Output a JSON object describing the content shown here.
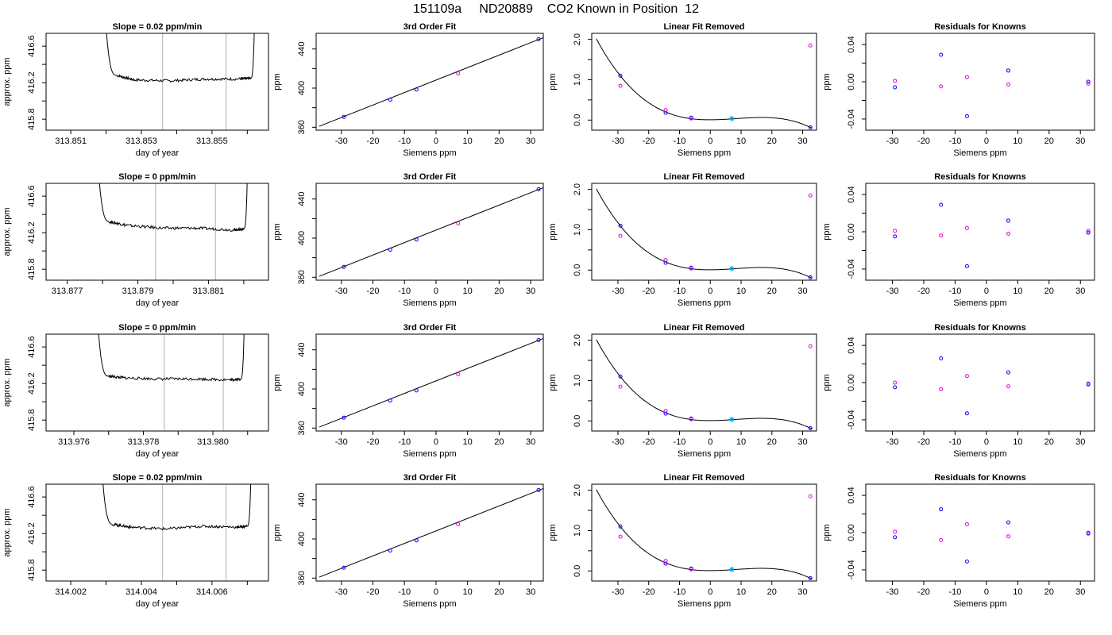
{
  "title": "151109a     ND20889    CO2 Known in Position  12",
  "colors": {
    "frame": "#000000",
    "trace": "#000000",
    "marker_line": "#bfbfbf",
    "point_blue": "#0000ff",
    "point_magenta": "#e000e0",
    "point_cyan": "#00b0ff"
  },
  "rows": [
    {
      "timeseries": {
        "title": "Slope =  0.02  ppm/min",
        "xlabel": "day of year",
        "ylabel": "approx. ppm",
        "x_ticks": [
          "313.851",
          "313.853",
          "313.855"
        ],
        "x_tick_values": [
          313.851,
          313.853,
          313.855
        ],
        "xlim": [
          313.8503,
          313.8566
        ],
        "y_ticks": [
          "415.8",
          "416.2",
          "416.6"
        ],
        "y_tick_values": [
          415.8,
          416.2,
          416.6
        ],
        "ylim": [
          415.68,
          416.74
        ],
        "markers": [
          313.8536,
          313.8554
        ]
      },
      "cubic": {
        "title": "3rd Order Fit",
        "xlabel": "Siemens ppm",
        "ylabel": "ppm"
      },
      "linear": {
        "title": "Linear Fit Removed",
        "xlabel": "Siemens ppm",
        "ylabel": "ppm"
      },
      "resid": {
        "title": "Residuals for Knowns",
        "xlabel": "Siemens ppm",
        "ylabel": "ppm"
      }
    },
    {
      "timeseries": {
        "title": "Slope =  0  ppm/min",
        "xlabel": "day of year",
        "ylabel": "approx. ppm",
        "x_ticks": [
          "313.877",
          "313.879",
          "313.881"
        ],
        "x_tick_values": [
          313.877,
          313.879,
          313.881
        ],
        "xlim": [
          313.8764,
          313.8827
        ],
        "y_ticks": [
          "415.8",
          "416.2",
          "416.6"
        ],
        "y_tick_values": [
          415.8,
          416.2,
          416.6
        ],
        "ylim": [
          415.68,
          416.74
        ],
        "markers": [
          313.8795,
          313.8812
        ]
      },
      "cubic": {
        "title": "3rd Order Fit",
        "xlabel": "Siemens ppm",
        "ylabel": "ppm"
      },
      "linear": {
        "title": "Linear Fit Removed",
        "xlabel": "Siemens ppm",
        "ylabel": "ppm"
      },
      "resid": {
        "title": "Residuals for Knowns",
        "xlabel": "Siemens ppm",
        "ylabel": "ppm"
      }
    },
    {
      "timeseries": {
        "title": "Slope =  0  ppm/min",
        "xlabel": "day of year",
        "ylabel": "approx. ppm",
        "x_ticks": [
          "313.976",
          "313.978",
          "313.980"
        ],
        "x_tick_values": [
          313.976,
          313.978,
          313.98
        ],
        "xlim": [
          313.9752,
          313.9816
        ],
        "y_ticks": [
          "415.8",
          "416.2",
          "416.6"
        ],
        "y_tick_values": [
          415.8,
          416.2,
          416.6
        ],
        "ylim": [
          415.68,
          416.74
        ],
        "markers": [
          313.9786,
          313.9803
        ]
      },
      "cubic": {
        "title": "3rd Order Fit",
        "xlabel": "Siemens ppm",
        "ylabel": "ppm"
      },
      "linear": {
        "title": "Linear Fit Removed",
        "xlabel": "Siemens ppm",
        "ylabel": "ppm"
      },
      "resid": {
        "title": "Residuals for Knowns",
        "xlabel": "Siemens ppm",
        "ylabel": "ppm"
      }
    },
    {
      "timeseries": {
        "title": "Slope =  0.02  ppm/min",
        "xlabel": "day of year",
        "ylabel": "approx. ppm",
        "x_ticks": [
          "314.002",
          "314.004",
          "314.006"
        ],
        "x_tick_values": [
          314.002,
          314.004,
          314.006
        ],
        "xlim": [
          314.0013,
          314.0076
        ],
        "y_ticks": [
          "415.8",
          "416.2",
          "416.6"
        ],
        "y_tick_values": [
          415.8,
          416.2,
          416.6
        ],
        "ylim": [
          415.68,
          416.74
        ],
        "markers": [
          314.0046,
          314.0064
        ]
      },
      "cubic": {
        "title": "3rd Order Fit",
        "xlabel": "Siemens ppm",
        "ylabel": "ppm"
      },
      "linear": {
        "title": "Linear Fit Removed",
        "xlabel": "Siemens ppm",
        "ylabel": "ppm"
      },
      "resid": {
        "title": "Residuals for Knowns",
        "xlabel": "Siemens ppm",
        "ylabel": "ppm"
      }
    }
  ],
  "chart_data": [
    {
      "type": "line",
      "panel": "time series (row 1)",
      "title": "Slope =  0.02  ppm/min",
      "xlabel": "day of year",
      "ylabel": "approx. ppm",
      "xlim": [
        313.8503,
        313.8566
      ],
      "ylim": [
        415.68,
        416.74
      ],
      "x": [
        313.852,
        313.8523,
        313.8528,
        313.8538,
        313.8548,
        313.8558,
        313.8561,
        313.8562
      ],
      "y": [
        416.8,
        416.28,
        416.23,
        416.22,
        416.24,
        416.24,
        416.25,
        416.8
      ]
    },
    {
      "type": "line",
      "panel": "time series (row 2)",
      "title": "Slope =  0  ppm/min",
      "xlabel": "day of year",
      "ylabel": "approx. ppm",
      "xlim": [
        313.8764,
        313.8827
      ],
      "ylim": [
        415.68,
        416.74
      ],
      "x": [
        313.8779,
        313.8782,
        313.8787,
        313.8797,
        313.8807,
        313.8817,
        313.882,
        313.8821
      ],
      "y": [
        416.8,
        416.32,
        416.28,
        416.25,
        416.25,
        416.23,
        416.24,
        416.8
      ]
    },
    {
      "type": "line",
      "panel": "time series (row 3)",
      "title": "Slope =  0  ppm/min",
      "xlabel": "day of year",
      "ylabel": "approx. ppm",
      "xlim": [
        313.9752,
        313.9816
      ],
      "ylim": [
        415.68,
        416.74
      ],
      "x": [
        313.9767,
        313.977,
        313.9775,
        313.9785,
        313.9795,
        313.9805,
        313.9808,
        313.9809
      ],
      "y": [
        416.8,
        416.28,
        416.26,
        416.25,
        416.25,
        416.24,
        416.25,
        416.8
      ]
    },
    {
      "type": "line",
      "panel": "time series (row 4)",
      "title": "Slope =  0.02  ppm/min",
      "xlabel": "day of year",
      "ylabel": "approx. ppm",
      "xlim": [
        314.0013,
        314.0076
      ],
      "ylim": [
        415.68,
        416.74
      ],
      "x": [
        314.0029,
        314.0032,
        314.0037,
        314.0047,
        314.0057,
        314.0067,
        314.007,
        314.0071
      ],
      "y": [
        416.8,
        416.3,
        416.27,
        416.25,
        416.28,
        416.27,
        416.28,
        416.8
      ]
    },
    {
      "type": "scatter",
      "panel": "3rd Order Fit (all rows)",
      "title": "3rd Order Fit",
      "xlabel": "Siemens ppm",
      "ylabel": "ppm",
      "xlim": [
        -38,
        34
      ],
      "ylim": [
        357,
        456
      ],
      "x_ticks": [
        -30,
        -20,
        -10,
        0,
        10,
        20,
        30
      ],
      "y_ticks": [
        360,
        400,
        440
      ],
      "points": {
        "x": [
          -29.2,
          -14.5,
          -6.2,
          7.0,
          32.5
        ],
        "y": [
          370.6,
          388.2,
          398.5,
          415.0,
          450.0
        ]
      },
      "fit_line": {
        "x": [
          -37,
          34
        ],
        "y": [
          361.0,
          451.6
        ]
      }
    },
    {
      "type": "scatter",
      "panel": "Linear Fit Removed (all rows)",
      "title": "Linear Fit Removed",
      "xlabel": "Siemens ppm",
      "ylabel": "ppm",
      "xlim": [
        -38.5,
        34.5
      ],
      "ylim": [
        -0.25,
        2.15
      ],
      "x_ticks": [
        -30,
        -20,
        -10,
        0,
        10,
        20,
        30
      ],
      "y_ticks": [
        0.0,
        1.0,
        2.0
      ],
      "series": [
        {
          "x": [
            -29.2,
            -14.5,
            -6.2,
            7.0,
            32.5
          ],
          "y": [
            1.1,
            0.18,
            0.06,
            0.02,
            -0.18
          ]
        },
        {
          "x": [
            -29.2,
            -14.5,
            -6.2,
            7.0,
            32.5
          ],
          "y": [
            0.85,
            0.25,
            0.04,
            0.05,
            1.85
          ]
        }
      ],
      "curve_note": "cubic fit curve, residual from linear fit"
    },
    {
      "type": "scatter",
      "panel": "Residuals for Knowns (row 1)",
      "title": "Residuals for Knowns",
      "xlabel": "Siemens ppm",
      "ylabel": "ppm",
      "xlim": [
        -38.5,
        34.5
      ],
      "ylim": [
        -0.052,
        0.052
      ],
      "x_ticks": [
        -30,
        -20,
        -10,
        0,
        10,
        20,
        30
      ],
      "y_ticks": [
        -0.04,
        0.0,
        0.04
      ],
      "series": [
        {
          "x": [
            -29.2,
            -14.5,
            -6.2,
            7.0,
            32.5
          ],
          "y": [
            -0.006,
            0.029,
            -0.037,
            0.012,
            0.0
          ]
        },
        {
          "x": [
            -29.2,
            -14.5,
            -6.2,
            7.0,
            32.5
          ],
          "y": [
            0.001,
            -0.005,
            0.005,
            -0.003,
            -0.002
          ]
        }
      ]
    },
    {
      "type": "scatter",
      "panel": "Residuals for Knowns (row 2)",
      "title": "Residuals for Knowns",
      "xlabel": "Siemens ppm",
      "ylabel": "ppm",
      "xlim": [
        -38.5,
        34.5
      ],
      "ylim": [
        -0.052,
        0.052
      ],
      "x_ticks": [
        -30,
        -20,
        -10,
        0,
        10,
        20,
        30
      ],
      "y_ticks": [
        -0.04,
        0.0,
        0.04
      ],
      "series": [
        {
          "x": [
            -29.2,
            -14.5,
            -6.2,
            7.0,
            32.5
          ],
          "y": [
            -0.005,
            0.029,
            -0.037,
            0.012,
            -0.001
          ]
        },
        {
          "x": [
            -29.2,
            -14.5,
            -6.2,
            7.0,
            32.5
          ],
          "y": [
            0.001,
            -0.004,
            0.004,
            -0.002,
            0.001
          ]
        }
      ]
    },
    {
      "type": "scatter",
      "panel": "Residuals for Knowns (row 3)",
      "title": "Residuals for Knowns",
      "xlabel": "Siemens ppm",
      "ylabel": "ppm",
      "xlim": [
        -38.5,
        34.5
      ],
      "ylim": [
        -0.052,
        0.052
      ],
      "x_ticks": [
        -30,
        -20,
        -10,
        0,
        10,
        20,
        30
      ],
      "y_ticks": [
        -0.04,
        0.0,
        0.04
      ],
      "series": [
        {
          "x": [
            -29.2,
            -14.5,
            -6.2,
            7.0,
            32.5
          ],
          "y": [
            -0.005,
            0.026,
            -0.033,
            0.011,
            -0.002
          ]
        },
        {
          "x": [
            -29.2,
            -14.5,
            -6.2,
            7.0,
            32.5
          ],
          "y": [
            0.0,
            -0.007,
            0.007,
            -0.004,
            -0.001
          ]
        }
      ]
    },
    {
      "type": "scatter",
      "panel": "Residuals for Knowns (row 4)",
      "title": "Residuals for Knowns",
      "xlabel": "Siemens ppm",
      "ylabel": "ppm",
      "xlim": [
        -38.5,
        34.5
      ],
      "ylim": [
        -0.052,
        0.052
      ],
      "x_ticks": [
        -30,
        -20,
        -10,
        0,
        10,
        20,
        30
      ],
      "y_ticks": [
        -0.04,
        0.0,
        0.04
      ],
      "series": [
        {
          "x": [
            -29.2,
            -14.5,
            -6.2,
            7.0,
            32.5
          ],
          "y": [
            -0.005,
            0.025,
            -0.031,
            0.011,
            -0.001
          ]
        },
        {
          "x": [
            -29.2,
            -14.5,
            -6.2,
            7.0,
            32.5
          ],
          "y": [
            0.001,
            -0.008,
            0.009,
            -0.004,
            0.0
          ]
        }
      ]
    }
  ]
}
